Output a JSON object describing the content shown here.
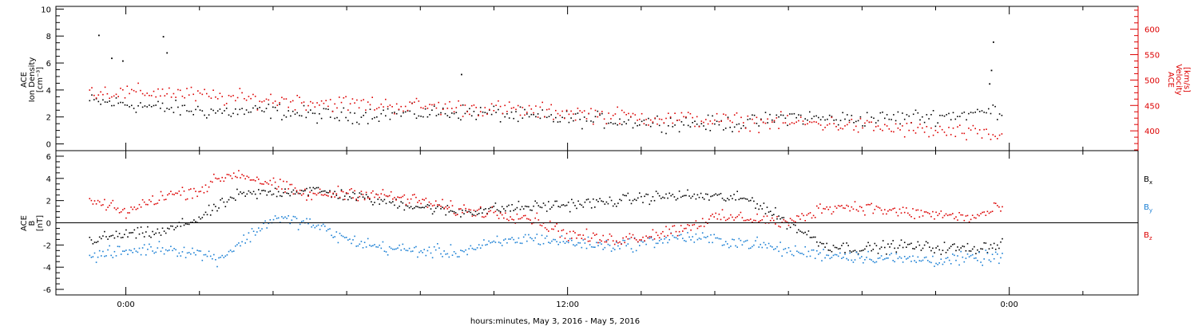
{
  "chart_data": [
    {
      "type": "scatter",
      "panel": "plasma",
      "left_axis": {
        "label_lines": [
          "ACE",
          "Ion Density",
          "[cm⁻³]"
        ],
        "ylim": [
          -0.5,
          10.2
        ],
        "ticks": [
          0,
          2,
          4,
          6,
          8,
          10
        ],
        "color": "#000000"
      },
      "right_axis": {
        "label_lines": [
          "ACE",
          "Velocity",
          "[km/s]"
        ],
        "ylim": [
          361,
          645
        ],
        "ticks": [
          400,
          450,
          500,
          550,
          600
        ],
        "color": "#dd0000"
      },
      "series": [
        {
          "color": "#000000",
          "axis": "left",
          "x_hours": [
            -1,
            0,
            1,
            2,
            3,
            4,
            5,
            6,
            7,
            8,
            9,
            10,
            11,
            12,
            13,
            14,
            15,
            16,
            17,
            18,
            19,
            20,
            21,
            22,
            23,
            23.8
          ],
          "y": [
            3.2,
            3.0,
            2.7,
            2.5,
            2.4,
            2.5,
            2.2,
            2.1,
            2.3,
            2.3,
            2.4,
            2.3,
            2.0,
            1.9,
            1.8,
            1.7,
            1.6,
            1.5,
            1.6,
            2.1,
            1.9,
            1.9,
            2.0,
            2.1,
            2.3,
            2.6
          ],
          "noise": 0.5,
          "spikes": [
            {
              "x": -0.75,
              "y": 8.1
            },
            {
              "x": -0.4,
              "y": 6.4
            },
            {
              "x": -0.1,
              "y": 6.2
            },
            {
              "x": 1.0,
              "y": 8.0
            },
            {
              "x": 1.1,
              "y": 6.8
            },
            {
              "x": 9.1,
              "y": 5.2
            },
            {
              "x": 23.55,
              "y": 7.6
            },
            {
              "x": 23.5,
              "y": 5.5
            },
            {
              "x": 23.45,
              "y": 4.5
            }
          ]
        },
        {
          "color": "#dd0000",
          "axis": "right",
          "x_hours": [
            -1,
            0,
            1,
            2,
            3,
            4,
            5,
            6,
            7,
            8,
            9,
            10,
            11,
            12,
            13,
            14,
            15,
            16,
            17,
            18,
            19,
            20,
            21,
            22,
            23,
            23.8
          ],
          "y": [
            480,
            475,
            478,
            470,
            465,
            462,
            458,
            455,
            452,
            450,
            447,
            445,
            440,
            438,
            432,
            428,
            425,
            422,
            418,
            418,
            415,
            410,
            405,
            400,
            395,
            390
          ],
          "noise": 14
        }
      ]
    },
    {
      "type": "scatter",
      "panel": "magnetic",
      "left_axis": {
        "label_lines": [
          "ACE",
          "B",
          "[nT]"
        ],
        "ylim": [
          -6.5,
          6.5
        ],
        "ticks": [
          -6,
          -4,
          -2,
          0,
          2,
          4,
          6
        ],
        "zero_line": true,
        "color": "#000000"
      },
      "series": [
        {
          "name": "Bx",
          "legend_base": "B",
          "legend_sub": "x",
          "color": "#000000",
          "x_hours": [
            -1,
            0,
            1,
            2,
            2.5,
            3,
            4,
            5,
            6,
            7,
            8,
            9,
            10,
            11,
            12,
            13,
            14,
            15,
            16,
            17,
            18,
            19,
            20,
            21,
            22,
            23,
            23.8
          ],
          "y": [
            -1.5,
            -1.0,
            -0.8,
            0.5,
            1.5,
            2.5,
            2.8,
            3.0,
            2.5,
            2.0,
            1.5,
            1.0,
            1.3,
            1.5,
            1.7,
            1.9,
            2.3,
            2.5,
            2.4,
            2.1,
            0.0,
            -2.0,
            -2.3,
            -2.0,
            -2.2,
            -2.3,
            -1.8
          ],
          "noise": 0.45
        },
        {
          "name": "By",
          "legend_base": "B",
          "legend_sub": "y",
          "color": "#1a7fd4",
          "x_hours": [
            -1,
            0,
            1,
            2,
            2.5,
            3,
            4,
            5,
            6,
            7,
            8,
            9,
            10,
            11,
            12,
            13,
            14,
            15,
            16,
            17,
            18,
            19,
            20,
            21,
            22,
            23,
            23.8
          ],
          "y": [
            -3.0,
            -2.5,
            -2.2,
            -2.7,
            -3.2,
            -2.0,
            0.5,
            0.0,
            -1.5,
            -2.2,
            -2.5,
            -2.6,
            -1.8,
            -1.3,
            -1.7,
            -2.0,
            -1.8,
            -1.2,
            -1.5,
            -1.8,
            -2.5,
            -2.8,
            -3.0,
            -3.2,
            -3.3,
            -3.2,
            -3.0
          ],
          "noise": 0.5
        },
        {
          "name": "Bz",
          "legend_base": "B",
          "legend_sub": "z",
          "color": "#dd0000",
          "x_hours": [
            -1,
            0,
            1,
            2,
            2.5,
            3,
            4,
            5,
            6,
            7,
            8,
            9,
            10,
            11,
            12,
            13,
            14,
            15,
            16,
            17,
            18,
            19,
            20,
            21,
            22,
            23,
            23.8
          ],
          "y": [
            2.0,
            1.0,
            2.5,
            3.0,
            4.0,
            4.5,
            3.5,
            2.5,
            2.8,
            2.5,
            2.0,
            1.2,
            1.0,
            0.5,
            -1.0,
            -1.5,
            -1.2,
            -0.5,
            0.5,
            0.5,
            0.0,
            1.5,
            1.5,
            1.0,
            0.8,
            0.5,
            1.5
          ],
          "noise": 0.5
        }
      ]
    }
  ],
  "x_axis": {
    "range_hours": [
      -1.9,
      27.5
    ],
    "labeled_ticks": [
      {
        "hours": 0,
        "label": "0:00"
      },
      {
        "hours": 12,
        "label": "12:00"
      },
      {
        "hours": 24,
        "label": "0:00"
      }
    ],
    "minor_step_hours": 2,
    "label": "hours:minutes, May  3, 2016 - May  5, 2016"
  }
}
